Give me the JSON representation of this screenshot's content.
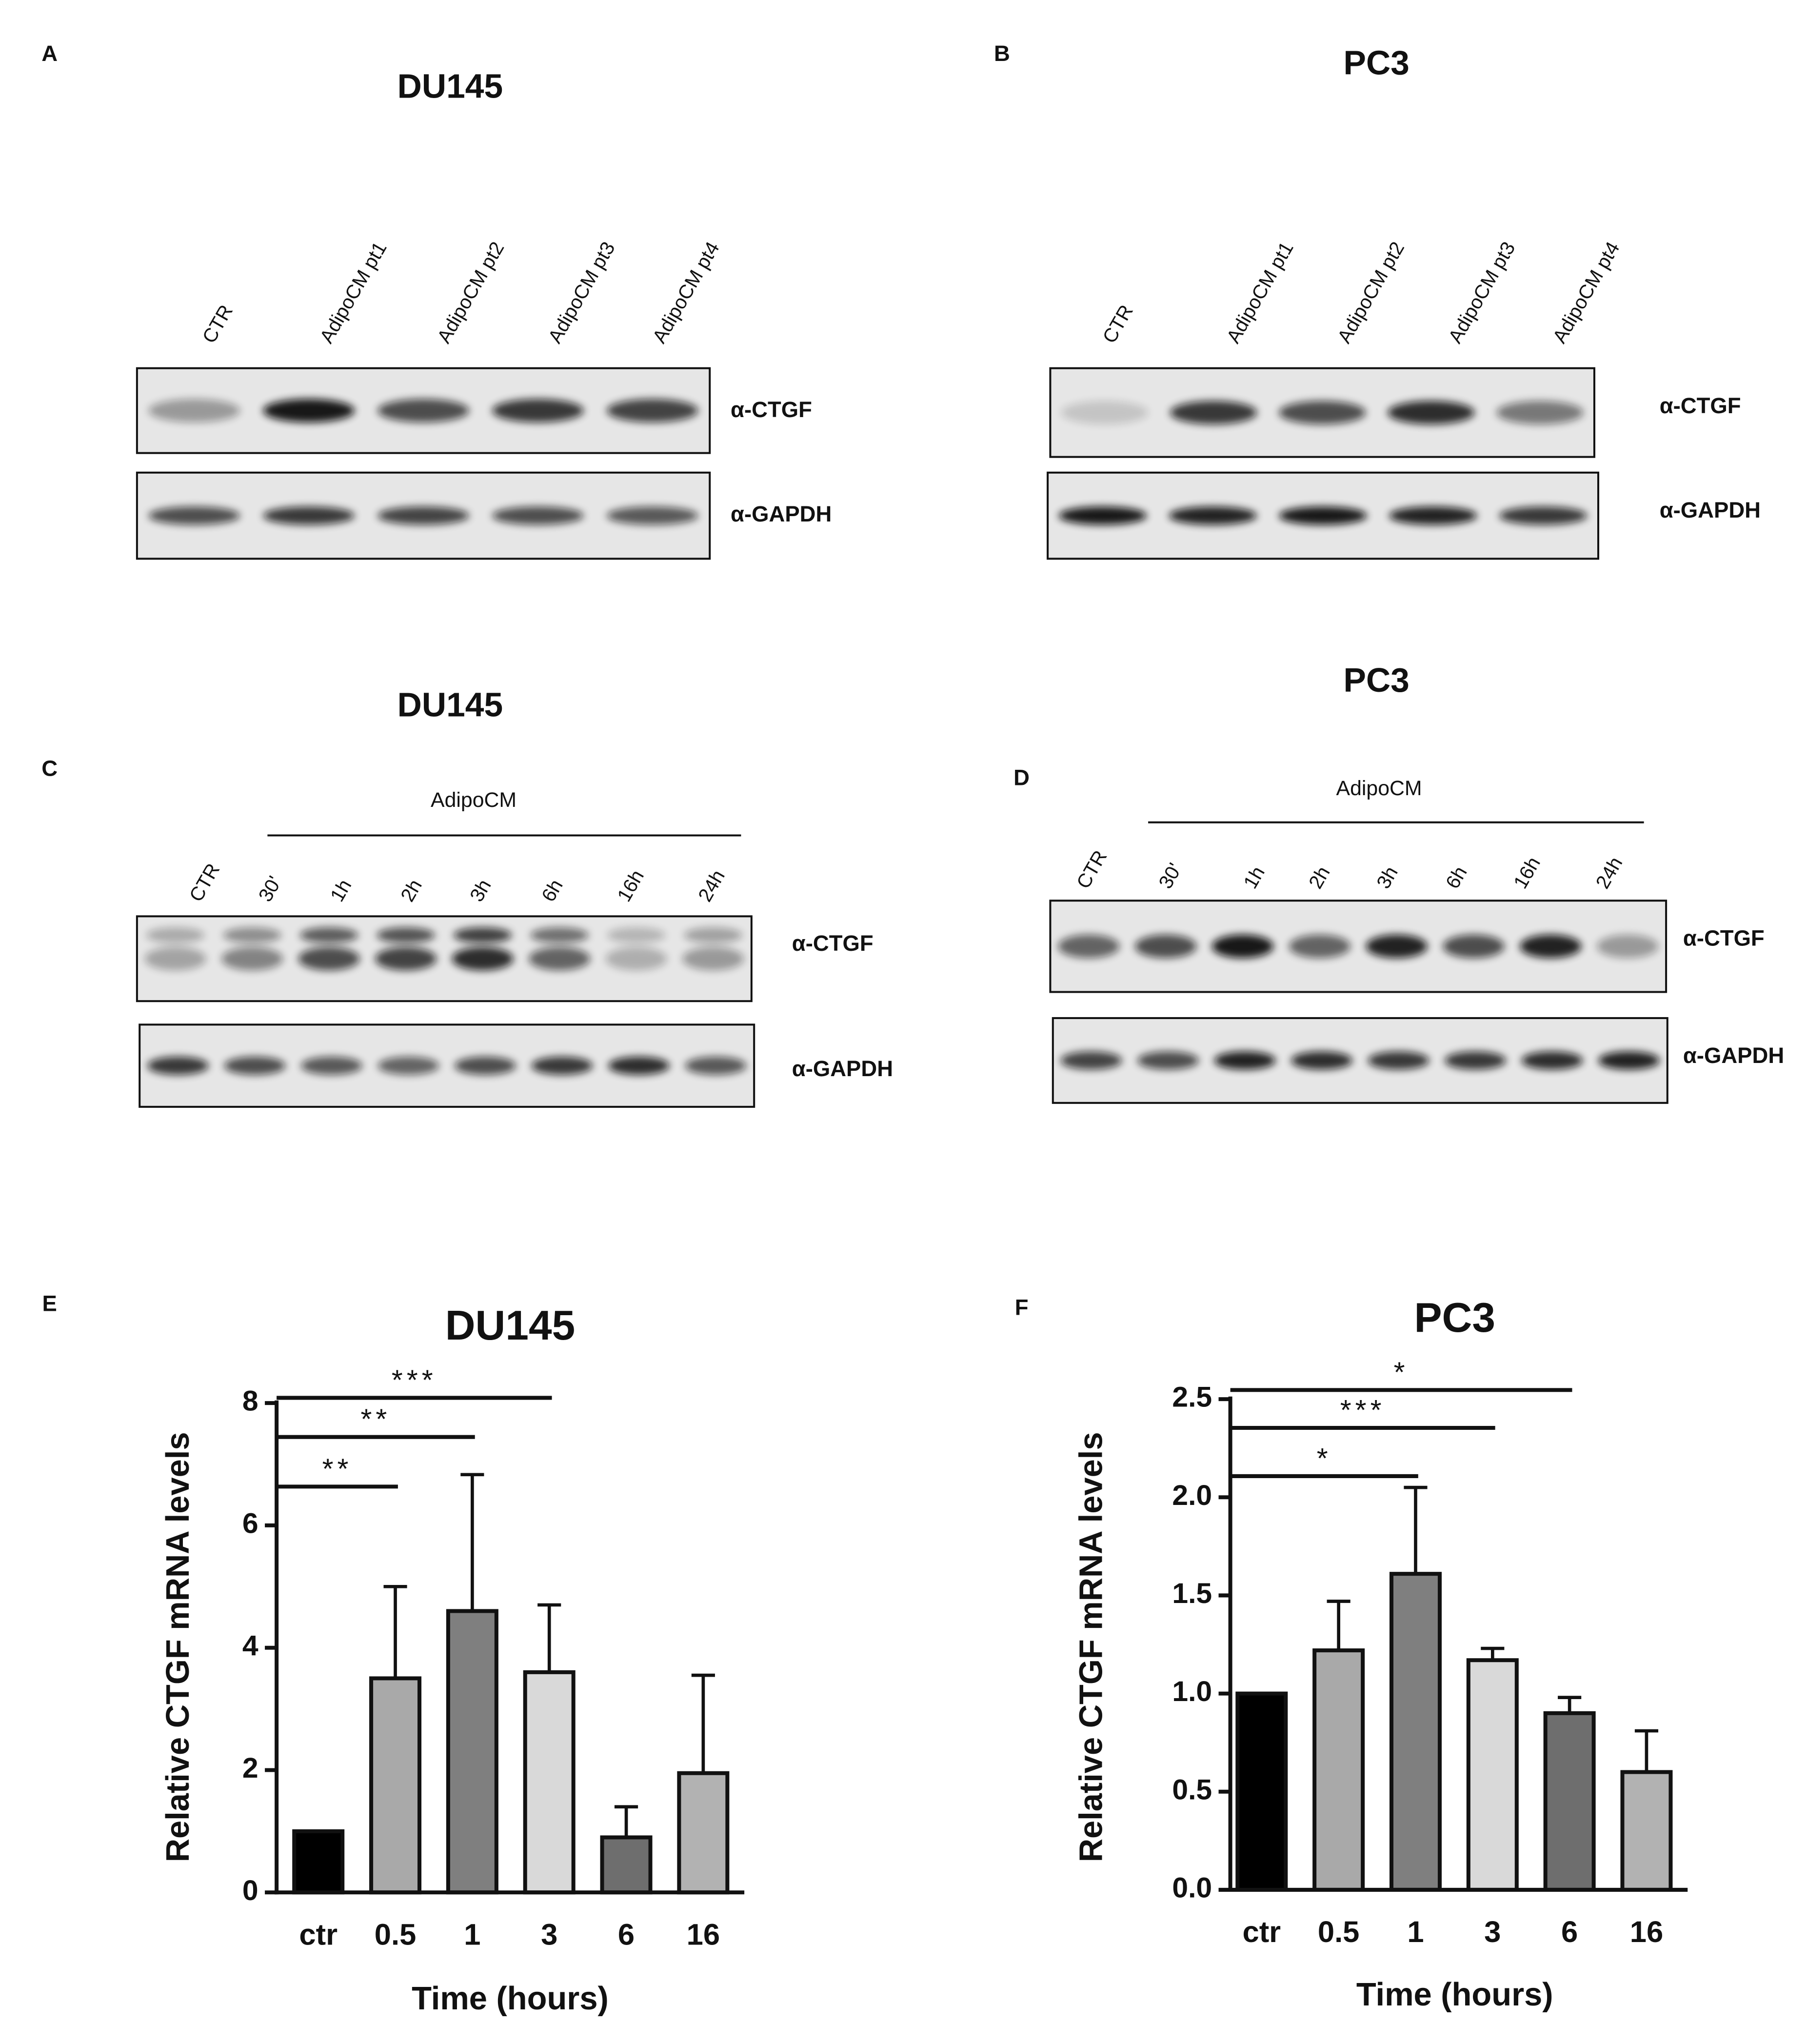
{
  "panels": [
    {
      "letter": "A",
      "title": "DU145",
      "lanes": [
        "CTR",
        "AdipoCM pt1",
        "AdipoCM pt2",
        "AdipoCM pt3",
        "AdipoCM pt4"
      ],
      "markers": [
        "α-CTGF",
        "α-GAPDH"
      ]
    },
    {
      "letter": "B",
      "title": "PC3",
      "lanes": [
        "CTR",
        "AdipoCM pt1",
        "AdipoCM pt2",
        "AdipoCM pt3",
        "AdipoCM pt4"
      ],
      "markers": [
        "α-CTGF",
        "α-GAPDH"
      ]
    },
    {
      "letter": "C",
      "title": "DU145",
      "group": "AdipoCM",
      "lanes": [
        "CTR",
        "30'",
        "1h",
        "2h",
        "3h",
        "6h",
        "16h",
        "24h"
      ],
      "markers": [
        "α-CTGF",
        "α-GAPDH"
      ]
    },
    {
      "letter": "D",
      "title": "PC3",
      "group": "AdipoCM",
      "lanes": [
        "CTR",
        "30'",
        "1h",
        "2h",
        "3h",
        "6h",
        "16h",
        "24h"
      ],
      "markers": [
        "α-CTGF",
        "α-GAPDH"
      ]
    }
  ],
  "chart_data": [
    {
      "type": "bar",
      "panel": "E",
      "title": "DU145",
      "x_label": "Time (hours)",
      "y_label": "Relative CTGF mRNA levels",
      "categories": [
        "ctr",
        "0.5",
        "1",
        "3",
        "6",
        "16"
      ],
      "values": [
        1,
        3.5,
        4.6,
        3.6,
        0.9,
        1.95
      ],
      "errors": [
        0,
        1.5,
        2.23,
        1.1,
        0.5,
        1.6
      ],
      "colors": [
        "#000000",
        "#a9a9a9",
        "#7f7f7f",
        "#d9d9d9",
        "#6e6e6e",
        "#b2b2b2"
      ],
      "ylim": [
        0,
        8
      ],
      "yticks": [
        0,
        2,
        4,
        6,
        8
      ],
      "annotations": [
        {
          "label": "**",
          "to": "0.5"
        },
        {
          "label": "**",
          "to": "1"
        },
        {
          "label": "***",
          "to": "3"
        }
      ]
    },
    {
      "type": "bar",
      "panel": "F",
      "title": "PC3",
      "x_label": "Time (hours)",
      "y_label": "Relative CTGF mRNA levels",
      "categories": [
        "ctr",
        "0.5",
        "1",
        "3",
        "6",
        "16"
      ],
      "values": [
        1,
        1.22,
        1.61,
        1.17,
        0.9,
        0.6
      ],
      "errors": [
        0,
        0.25,
        0.44,
        0.06,
        0.08,
        0.21
      ],
      "colors": [
        "#000000",
        "#a9a9a9",
        "#7f7f7f",
        "#d9d9d9",
        "#6e6e6e",
        "#b2b2b2"
      ],
      "ylim": [
        0,
        2.5
      ],
      "yticks": [
        {
          "value": 0,
          "label": "0.0"
        },
        0.5,
        {
          "value": 1,
          "label": "1.0"
        },
        1.5,
        {
          "value": 2,
          "label": "2.0"
        },
        2.5
      ],
      "annotations": [
        {
          "label": "*",
          "to": "1"
        },
        {
          "label": "***",
          "to": "3"
        },
        {
          "label": "*",
          "to": "6"
        }
      ]
    }
  ]
}
